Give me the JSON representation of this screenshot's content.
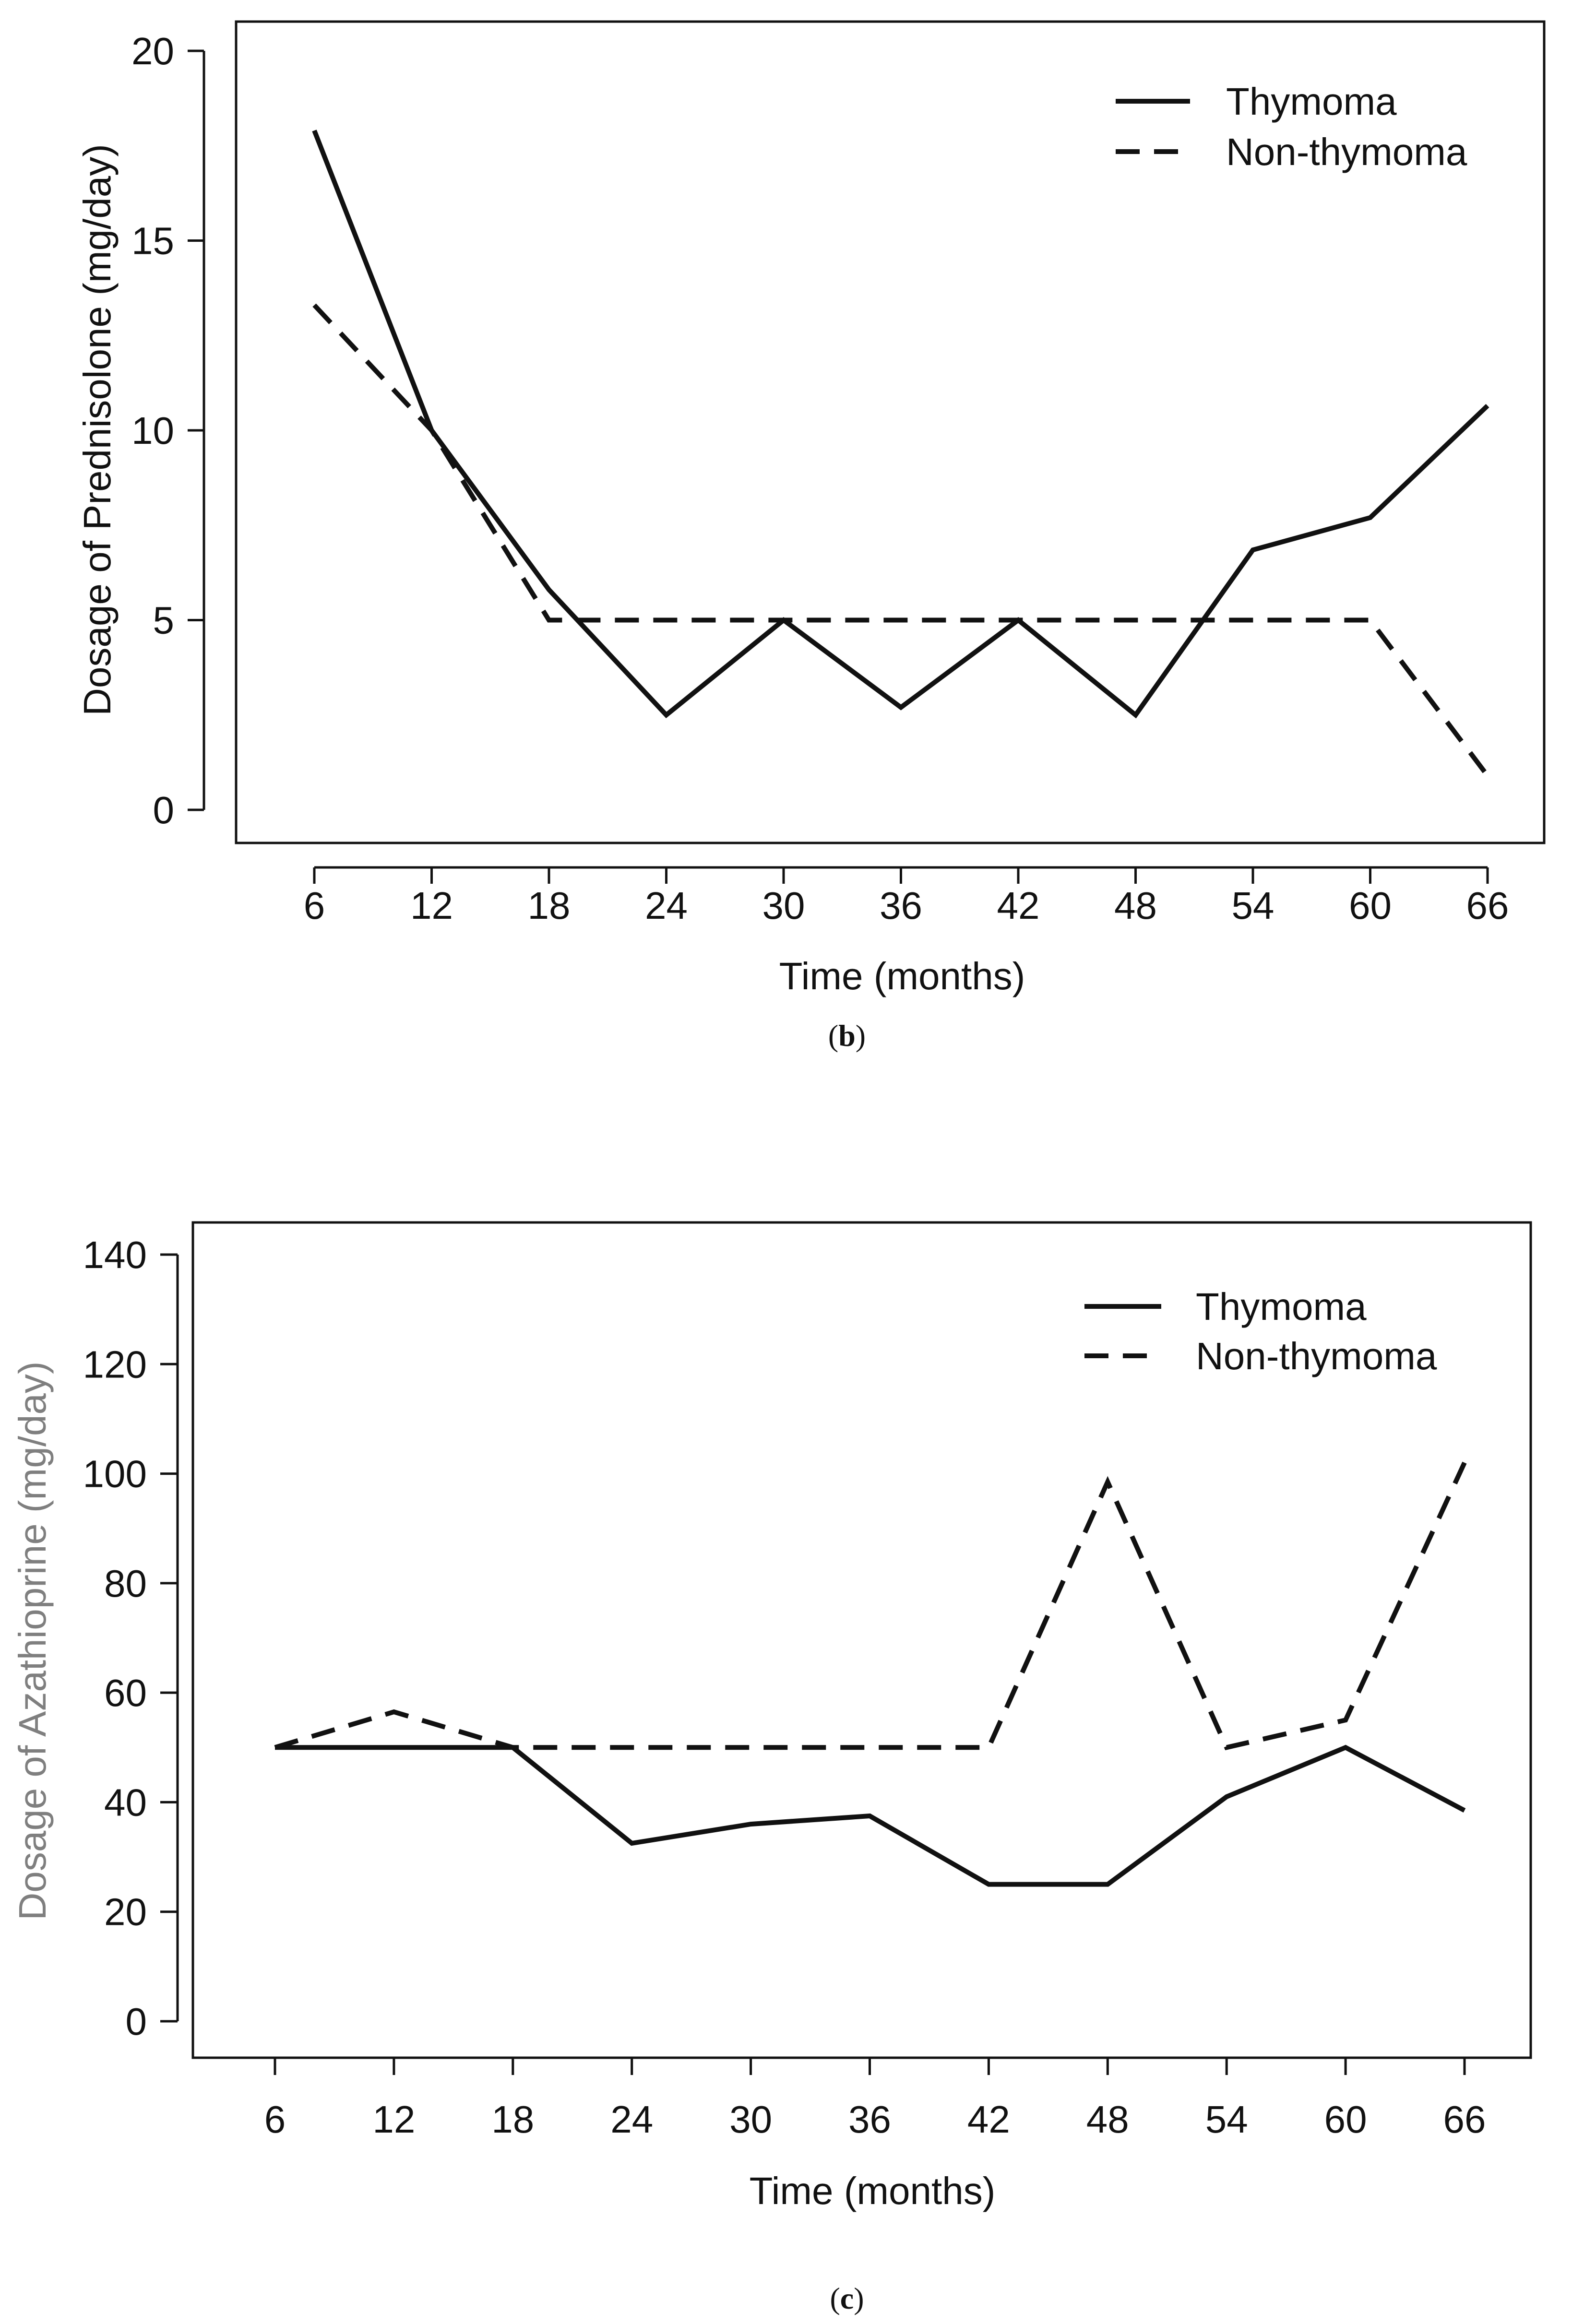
{
  "colors": {
    "line": "#111111",
    "axis": "#111111",
    "muted_label": "#7f7f7f",
    "background": "#ffffff"
  },
  "chart_data": [
    {
      "type": "line",
      "panel_label": "b",
      "categories": [
        "6",
        "12",
        "18",
        "24",
        "30",
        "36",
        "42",
        "48",
        "54",
        "60",
        "66"
      ],
      "series": [
        {
          "name": "Thymoma",
          "style": "solid",
          "values": [
            17.9,
            10.0,
            5.8,
            2.5,
            5.0,
            2.7,
            5.0,
            2.5,
            6.85,
            7.7,
            10.65
          ]
        },
        {
          "name": "Non-thymoma",
          "style": "dashed",
          "values": [
            13.3,
            10.0,
            5.0,
            5.0,
            5.0,
            5.0,
            5.0,
            5.0,
            5.0,
            5.0,
            0.9
          ]
        }
      ],
      "title": "",
      "xlabel": "Time (months)",
      "ylabel": "Dosage of Prednisolone (mg/day)",
      "ylim": [
        0,
        20
      ],
      "yticks": [
        "0",
        "5",
        "10",
        "15",
        "20"
      ],
      "legend_position": "top-right",
      "caption_open": "(",
      "caption_close": ")"
    },
    {
      "type": "line",
      "panel_label": "c",
      "categories": [
        "6",
        "12",
        "18",
        "24",
        "30",
        "36",
        "42",
        "48",
        "54",
        "60",
        "66"
      ],
      "series": [
        {
          "name": "Thymoma",
          "style": "solid",
          "values": [
            50,
            50,
            50,
            32.5,
            36,
            37.5,
            25,
            25,
            41,
            50,
            38.5
          ]
        },
        {
          "name": "Non-thymoma",
          "style": "dashed",
          "values": [
            50,
            56.5,
            50,
            50,
            50,
            50,
            50,
            98.5,
            50,
            55,
            102
          ]
        }
      ],
      "title": "",
      "xlabel": "Time (months)",
      "ylabel": "Dosage of Azathioprine (mg/day)",
      "ylim": [
        0,
        140
      ],
      "yticks": [
        "0",
        "20",
        "40",
        "60",
        "80",
        "100",
        "120",
        "140"
      ],
      "legend_position": "top-right",
      "caption_open": "(",
      "caption_close": ")"
    }
  ]
}
